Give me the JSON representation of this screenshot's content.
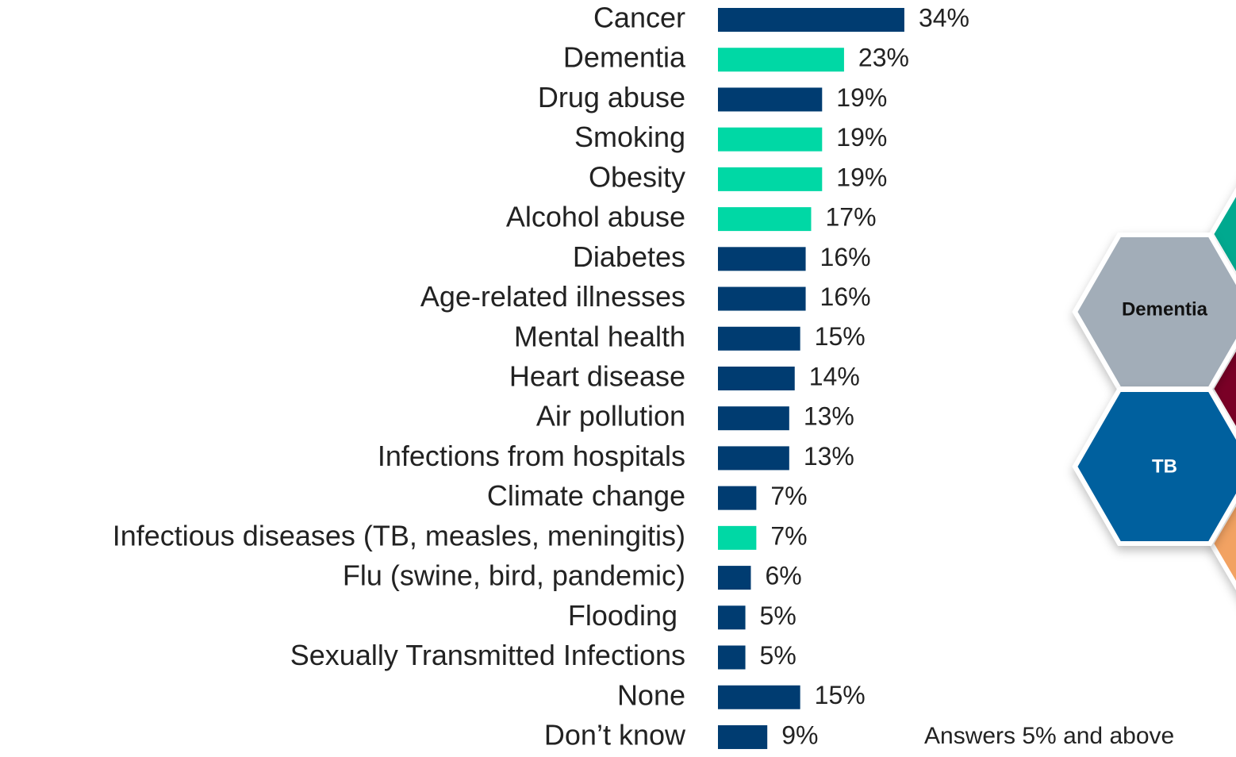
{
  "chart_data": {
    "type": "bar",
    "orientation": "horizontal",
    "categories": [
      "Cancer",
      "Dementia",
      "Drug abuse",
      "Smoking",
      "Obesity",
      "Alcohol abuse",
      "Diabetes",
      "Age-related illnesses",
      "Mental health",
      "Heart disease",
      "Air pollution",
      "Infections from hospitals",
      "Climate change",
      "Infectious diseases (TB, measles, meningitis)",
      "Flu (swine, bird, pandemic)",
      "Flooding ",
      "Sexually Transmitted Infections",
      "None",
      "Don’t know"
    ],
    "values": [
      34,
      23,
      19,
      19,
      19,
      17,
      16,
      16,
      15,
      14,
      13,
      13,
      7,
      7,
      6,
      5,
      5,
      15,
      9
    ],
    "value_labels": [
      "34%",
      "23%",
      "19%",
      "19%",
      "19%",
      "17%",
      "16%",
      "16%",
      "15%",
      "14%",
      "13%",
      "13%",
      "7%",
      "7%",
      "6%",
      "5%",
      "5%",
      "15%",
      "9%"
    ],
    "colors": [
      "#003c71",
      "#00d8a5",
      "#003c71",
      "#00d8a5",
      "#00d8a5",
      "#00d8a5",
      "#003c71",
      "#003c71",
      "#003c71",
      "#003c71",
      "#003c71",
      "#003c71",
      "#003c71",
      "#00d8a5",
      "#003c71",
      "#003c71",
      "#003c71",
      "#003c71",
      "#003c71"
    ],
    "note": "Answers 5% and above",
    "graphic_labels": [
      "Dementia",
      "TB"
    ]
  }
}
